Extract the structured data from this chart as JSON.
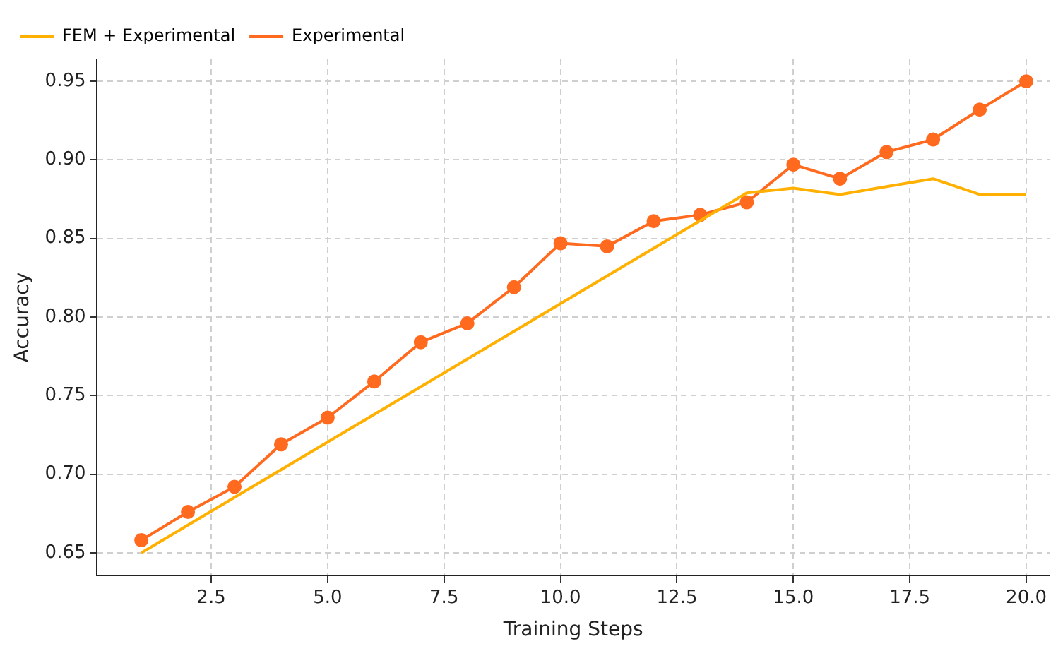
{
  "chart_data": {
    "type": "line",
    "xlabel": "Training Steps",
    "ylabel": "Accuracy",
    "xlim": [
      0.05,
      20.5
    ],
    "ylim": [
      0.6355,
      0.964
    ],
    "xticks": [
      {
        "value": 2.5,
        "label": "2.5"
      },
      {
        "value": 5,
        "label": "5.0"
      },
      {
        "value": 7.5,
        "label": "7.5"
      },
      {
        "value": 10,
        "label": "10.0"
      },
      {
        "value": 12.5,
        "label": "12.5"
      },
      {
        "value": 15,
        "label": "15.0"
      },
      {
        "value": 17.5,
        "label": "17.5"
      },
      {
        "value": 20,
        "label": "20.0"
      }
    ],
    "yticks": [
      {
        "value": 0.65,
        "label": "0.65"
      },
      {
        "value": 0.7,
        "label": "0.70"
      },
      {
        "value": 0.75,
        "label": "0.75"
      },
      {
        "value": 0.8,
        "label": "0.80"
      },
      {
        "value": 0.85,
        "label": "0.85"
      },
      {
        "value": 0.9,
        "label": "0.90"
      },
      {
        "value": 0.95,
        "label": "0.95"
      }
    ],
    "grid": true,
    "legend": "top left",
    "line_style": "solid",
    "series": [
      {
        "name": "FEM + Experimental",
        "color": "#ffb000",
        "marker": "none",
        "x": [
          1,
          14,
          15,
          16,
          17,
          18,
          19,
          20
        ],
        "values": [
          0.65,
          0.879,
          0.882,
          0.878,
          0.883,
          0.888,
          0.878,
          0.878
        ]
      },
      {
        "name": "Experimental",
        "color": "#ff6a1f",
        "marker": "circle",
        "x": [
          1,
          2,
          3,
          4,
          5,
          6,
          7,
          8,
          9,
          10,
          11,
          12,
          13,
          14,
          15,
          16,
          17,
          18,
          19,
          20
        ],
        "values": [
          0.658,
          0.676,
          0.692,
          0.719,
          0.736,
          0.759,
          0.784,
          0.796,
          0.819,
          0.847,
          0.845,
          0.861,
          0.865,
          0.873,
          0.897,
          0.888,
          0.905,
          0.913,
          0.932,
          0.95
        ]
      }
    ]
  }
}
